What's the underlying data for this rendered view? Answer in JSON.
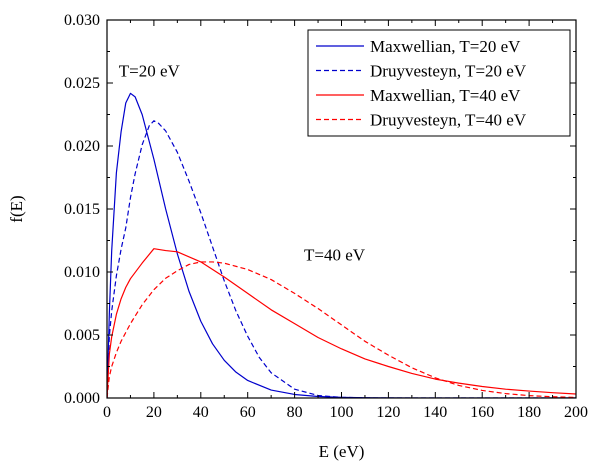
{
  "chart_data": {
    "type": "line",
    "xlabel": "E (eV)",
    "ylabel": "f(E)",
    "xlim": [
      0,
      200
    ],
    "ylim": [
      0,
      0.03
    ],
    "xticks": [
      "0",
      "20",
      "40",
      "60",
      "80",
      "100",
      "120",
      "140",
      "160",
      "180",
      "200"
    ],
    "yticks": [
      "0.000",
      "0.005",
      "0.010",
      "0.015",
      "0.020",
      "0.025",
      "0.030"
    ],
    "grid": false,
    "legend_position": "top-right",
    "annotations": [
      {
        "text": "T=20 eV",
        "x": 5,
        "y": 0.0255
      },
      {
        "text": "T=40 eV",
        "x": 84,
        "y": 0.0109
      }
    ],
    "series": [
      {
        "name": "Maxwellian, T=20 eV",
        "color": "#0000cc",
        "dash": "solid",
        "x": [
          0,
          1,
          2,
          4,
          6,
          8,
          10,
          12,
          15,
          20,
          25,
          30,
          35,
          40,
          45,
          50,
          55,
          60,
          70,
          80,
          90,
          100,
          110,
          120,
          130,
          140,
          150,
          160,
          180,
          200
        ],
        "y": [
          0,
          0.00672,
          0.01167,
          0.01786,
          0.02112,
          0.02341,
          0.02418,
          0.0239,
          0.02249,
          0.01895,
          0.01501,
          0.01144,
          0.00845,
          0.00609,
          0.0043,
          0.00299,
          0.00205,
          0.00139,
          0.00063,
          0.00028,
          0.00012,
          5e-05,
          2e-05,
          1e-05,
          0,
          0,
          0,
          0,
          0,
          0
        ]
      },
      {
        "name": "Druyvesteyn, T=20 eV",
        "color": "#0000cc",
        "dash": "dashed",
        "x": [
          0,
          1,
          2,
          4,
          6,
          8,
          10,
          12,
          15,
          18,
          20,
          22,
          25,
          30,
          35,
          40,
          45,
          50,
          55,
          60,
          65,
          70,
          80,
          90,
          100,
          110,
          120,
          140,
          160,
          180,
          200
        ],
        "y": [
          0,
          0.0049,
          0.0069,
          0.0097,
          0.0118,
          0.0135,
          0.0159,
          0.0178,
          0.0201,
          0.0216,
          0.022,
          0.0218,
          0.0212,
          0.0195,
          0.0172,
          0.0147,
          0.012,
          0.0093,
          0.0069,
          0.0049,
          0.0032,
          0.002,
          0.0007,
          0.0002,
          5e-05,
          1e-05,
          0,
          0,
          0,
          0,
          0
        ]
      },
      {
        "name": "Maxwellian, T=40 eV",
        "color": "#ff0000",
        "dash": "solid",
        "x": [
          0,
          1,
          2,
          4,
          6,
          8,
          10,
          15,
          20,
          25,
          30,
          40,
          50,
          60,
          70,
          80,
          90,
          100,
          110,
          120,
          130,
          140,
          150,
          160,
          170,
          180,
          190,
          200
        ],
        "y": [
          0,
          0.00348,
          0.00485,
          0.00664,
          0.00787,
          0.00878,
          0.00947,
          0.01071,
          0.01185,
          0.0117,
          0.0116,
          0.0108,
          0.0096,
          0.0083,
          0.007,
          0.0059,
          0.0048,
          0.0039,
          0.0031,
          0.0025,
          0.00195,
          0.0015,
          0.00118,
          0.00091,
          0.0007,
          0.00055,
          0.00042,
          0.00032
        ]
      },
      {
        "name": "Druyvesteyn, T=40 eV",
        "color": "#ff0000",
        "dash": "dashed",
        "x": [
          0,
          1,
          2,
          4,
          6,
          8,
          10,
          15,
          20,
          25,
          30,
          35,
          40,
          45,
          50,
          60,
          70,
          80,
          90,
          100,
          110,
          120,
          130,
          140,
          150,
          160,
          170,
          180,
          190,
          200
        ],
        "y": [
          0,
          0.0017,
          0.0025,
          0.0036,
          0.0045,
          0.0052,
          0.0059,
          0.0074,
          0.0086,
          0.0095,
          0.0101,
          0.0106,
          0.0108,
          0.0108,
          0.0107,
          0.0102,
          0.0094,
          0.0083,
          0.0071,
          0.0058,
          0.0045,
          0.0034,
          0.0024,
          0.0016,
          0.001,
          0.0006,
          0.00035,
          0.00019,
          0.0001,
          5e-05
        ]
      }
    ]
  }
}
